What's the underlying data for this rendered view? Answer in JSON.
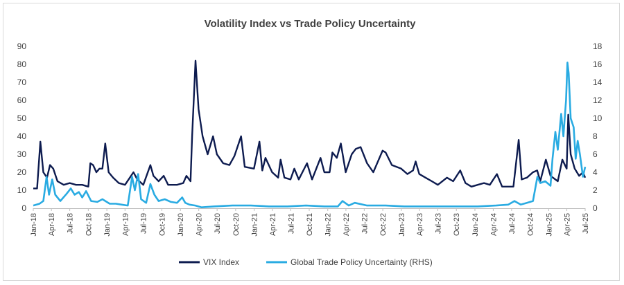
{
  "chart_data": {
    "type": "line",
    "title": "Volatility Index vs Trade Policy Uncertainty",
    "xlabel": "",
    "ylabel": "",
    "y_left": {
      "min": 0,
      "max": 90,
      "step": 10
    },
    "y_right": {
      "min": 0,
      "max": 18,
      "step": 2
    },
    "x_range": [
      "2018-01",
      "2025-07"
    ],
    "x_tick_labels": [
      "Jan-18",
      "Apr-18",
      "Jul-18",
      "Oct-18",
      "Jan-19",
      "Apr-19",
      "Jul-19",
      "Oct-19",
      "Jan-20",
      "Apr-20",
      "Jul-20",
      "Oct-20",
      "Jan-21",
      "Apr-21",
      "Jul-21",
      "Oct-21",
      "Jan-22",
      "Apr-22",
      "Jul-22",
      "Oct-22",
      "Jan-23",
      "Apr-23",
      "Jul-23",
      "Oct-23",
      "Jan-24",
      "Apr-24",
      "Jul-24",
      "Oct-24",
      "Jan-25",
      "Apr-25",
      "Jul-25"
    ],
    "legend": "bottom",
    "grid": "none",
    "series": [
      {
        "name": "VIX Index",
        "axis": "left",
        "color": "#0d1b4f",
        "points": [
          [
            "2018-01-01",
            11
          ],
          [
            "2018-01-20",
            11
          ],
          [
            "2018-02-05",
            37
          ],
          [
            "2018-02-20",
            20
          ],
          [
            "2018-03-10",
            17
          ],
          [
            "2018-03-25",
            24
          ],
          [
            "2018-04-10",
            22
          ],
          [
            "2018-05-01",
            15
          ],
          [
            "2018-06-01",
            13
          ],
          [
            "2018-07-01",
            14
          ],
          [
            "2018-08-01",
            13
          ],
          [
            "2018-09-01",
            13
          ],
          [
            "2018-10-01",
            12
          ],
          [
            "2018-10-11",
            25
          ],
          [
            "2018-10-25",
            24
          ],
          [
            "2018-11-10",
            20
          ],
          [
            "2018-11-25",
            22
          ],
          [
            "2018-12-10",
            22
          ],
          [
            "2018-12-24",
            36
          ],
          [
            "2019-01-10",
            20
          ],
          [
            "2019-02-01",
            17
          ],
          [
            "2019-03-01",
            14
          ],
          [
            "2019-04-01",
            13
          ],
          [
            "2019-05-13",
            20
          ],
          [
            "2019-06-01",
            16
          ],
          [
            "2019-07-01",
            13
          ],
          [
            "2019-08-05",
            24
          ],
          [
            "2019-08-20",
            18
          ],
          [
            "2019-09-15",
            15
          ],
          [
            "2019-10-10",
            18
          ],
          [
            "2019-11-01",
            13
          ],
          [
            "2019-12-15",
            13
          ],
          [
            "2020-01-15",
            14
          ],
          [
            "2020-01-31",
            18
          ],
          [
            "2020-02-20",
            15
          ],
          [
            "2020-02-28",
            40
          ],
          [
            "2020-03-16",
            82
          ],
          [
            "2020-03-31",
            55
          ],
          [
            "2020-04-20",
            40
          ],
          [
            "2020-05-15",
            30
          ],
          [
            "2020-06-11",
            40
          ],
          [
            "2020-06-30",
            30
          ],
          [
            "2020-07-31",
            25
          ],
          [
            "2020-08-31",
            24
          ],
          [
            "2020-09-25",
            29
          ],
          [
            "2020-10-28",
            40
          ],
          [
            "2020-11-15",
            23
          ],
          [
            "2020-12-31",
            22
          ],
          [
            "2021-01-27",
            37
          ],
          [
            "2021-02-10",
            21
          ],
          [
            "2021-02-26",
            28
          ],
          [
            "2021-03-31",
            20
          ],
          [
            "2021-04-30",
            17
          ],
          [
            "2021-05-12",
            27
          ],
          [
            "2021-05-31",
            17
          ],
          [
            "2021-06-30",
            16
          ],
          [
            "2021-07-19",
            22
          ],
          [
            "2021-08-10",
            16
          ],
          [
            "2021-09-20",
            25
          ],
          [
            "2021-10-15",
            16
          ],
          [
            "2021-11-26",
            28
          ],
          [
            "2021-12-15",
            20
          ],
          [
            "2022-01-10",
            20
          ],
          [
            "2022-01-24",
            31
          ],
          [
            "2022-02-15",
            28
          ],
          [
            "2022-03-07",
            36
          ],
          [
            "2022-03-31",
            20
          ],
          [
            "2022-04-30",
            30
          ],
          [
            "2022-05-20",
            33
          ],
          [
            "2022-06-13",
            34
          ],
          [
            "2022-07-15",
            25
          ],
          [
            "2022-08-15",
            20
          ],
          [
            "2022-09-30",
            32
          ],
          [
            "2022-10-15",
            31
          ],
          [
            "2022-11-15",
            24
          ],
          [
            "2022-12-31",
            22
          ],
          [
            "2023-01-31",
            19
          ],
          [
            "2023-02-28",
            21
          ],
          [
            "2023-03-13",
            26
          ],
          [
            "2023-03-31",
            19
          ],
          [
            "2023-05-01",
            17
          ],
          [
            "2023-06-01",
            15
          ],
          [
            "2023-07-01",
            13
          ],
          [
            "2023-08-15",
            17
          ],
          [
            "2023-09-15",
            15
          ],
          [
            "2023-10-20",
            21
          ],
          [
            "2023-11-15",
            14
          ],
          [
            "2023-12-15",
            12
          ],
          [
            "2024-01-15",
            13
          ],
          [
            "2024-02-15",
            14
          ],
          [
            "2024-03-15",
            13
          ],
          [
            "2024-04-19",
            19
          ],
          [
            "2024-05-15",
            12
          ],
          [
            "2024-07-10",
            12
          ],
          [
            "2024-08-05",
            38
          ],
          [
            "2024-08-20",
            16
          ],
          [
            "2024-09-15",
            17
          ],
          [
            "2024-10-15",
            20
          ],
          [
            "2024-11-05",
            21
          ],
          [
            "2024-11-20",
            15
          ],
          [
            "2024-12-18",
            27
          ],
          [
            "2025-01-10",
            18
          ],
          [
            "2025-02-15",
            15
          ],
          [
            "2025-03-10",
            27
          ],
          [
            "2025-03-31",
            22
          ],
          [
            "2025-04-08",
            52
          ],
          [
            "2025-04-20",
            30
          ],
          [
            "2025-05-10",
            22
          ],
          [
            "2025-06-01",
            18
          ],
          [
            "2025-06-20",
            20
          ],
          [
            "2025-07-01",
            17
          ]
        ]
      },
      {
        "name": "Global Trade Policy Uncertainty (RHS)",
        "axis": "right",
        "color": "#29abe2",
        "points": [
          [
            "2018-01-01",
            0.3
          ],
          [
            "2018-02-01",
            0.5
          ],
          [
            "2018-02-20",
            0.8
          ],
          [
            "2018-03-08",
            3.5
          ],
          [
            "2018-03-20",
            1.5
          ],
          [
            "2018-04-05",
            3.2
          ],
          [
            "2018-04-20",
            1.5
          ],
          [
            "2018-05-15",
            0.8
          ],
          [
            "2018-06-15",
            1.6
          ],
          [
            "2018-07-06",
            2.2
          ],
          [
            "2018-07-25",
            1.5
          ],
          [
            "2018-08-15",
            1.8
          ],
          [
            "2018-09-01",
            1.2
          ],
          [
            "2018-09-20",
            1.9
          ],
          [
            "2018-10-15",
            0.8
          ],
          [
            "2018-11-15",
            0.7
          ],
          [
            "2018-12-10",
            1.0
          ],
          [
            "2019-01-15",
            0.5
          ],
          [
            "2019-02-15",
            0.5
          ],
          [
            "2019-03-15",
            0.4
          ],
          [
            "2019-04-15",
            0.3
          ],
          [
            "2019-05-06",
            3.5
          ],
          [
            "2019-05-20",
            2.0
          ],
          [
            "2019-06-05",
            3.8
          ],
          [
            "2019-06-20",
            1.0
          ],
          [
            "2019-07-15",
            0.6
          ],
          [
            "2019-08-05",
            2.7
          ],
          [
            "2019-08-25",
            1.5
          ],
          [
            "2019-09-15",
            0.8
          ],
          [
            "2019-10-15",
            1.0
          ],
          [
            "2019-11-15",
            0.7
          ],
          [
            "2019-12-15",
            0.6
          ],
          [
            "2020-01-10",
            1.2
          ],
          [
            "2020-01-25",
            0.6
          ],
          [
            "2020-02-15",
            0.4
          ],
          [
            "2020-03-15",
            0.3
          ],
          [
            "2020-04-15",
            0.1
          ],
          [
            "2020-06-15",
            0.2
          ],
          [
            "2020-09-15",
            0.3
          ],
          [
            "2020-12-15",
            0.3
          ],
          [
            "2021-03-15",
            0.2
          ],
          [
            "2021-06-15",
            0.2
          ],
          [
            "2021-09-15",
            0.3
          ],
          [
            "2021-12-15",
            0.2
          ],
          [
            "2022-02-20",
            0.2
          ],
          [
            "2022-03-15",
            0.8
          ],
          [
            "2022-04-15",
            0.3
          ],
          [
            "2022-05-15",
            0.6
          ],
          [
            "2022-07-15",
            0.3
          ],
          [
            "2022-10-15",
            0.3
          ],
          [
            "2023-01-15",
            0.2
          ],
          [
            "2023-04-15",
            0.2
          ],
          [
            "2023-07-15",
            0.2
          ],
          [
            "2023-10-15",
            0.2
          ],
          [
            "2024-01-15",
            0.2
          ],
          [
            "2024-04-15",
            0.3
          ],
          [
            "2024-06-15",
            0.4
          ],
          [
            "2024-07-15",
            0.8
          ],
          [
            "2024-08-15",
            0.4
          ],
          [
            "2024-09-15",
            0.6
          ],
          [
            "2024-10-15",
            0.8
          ],
          [
            "2024-11-06",
            3.5
          ],
          [
            "2024-11-20",
            2.8
          ],
          [
            "2024-12-15",
            3.0
          ],
          [
            "2025-01-10",
            2.5
          ],
          [
            "2025-01-20",
            5.5
          ],
          [
            "2025-02-03",
            8.5
          ],
          [
            "2025-02-15",
            6.5
          ],
          [
            "2025-03-04",
            10.5
          ],
          [
            "2025-03-15",
            8.0
          ],
          [
            "2025-03-28",
            12.0
          ],
          [
            "2025-04-04",
            16.2
          ],
          [
            "2025-04-10",
            15.0
          ],
          [
            "2025-04-20",
            10.0
          ],
          [
            "2025-05-05",
            9.0
          ],
          [
            "2025-05-15",
            5.5
          ],
          [
            "2025-05-25",
            7.5
          ],
          [
            "2025-06-05",
            6.0
          ],
          [
            "2025-06-20",
            3.5
          ],
          [
            "2025-07-01",
            4.6
          ]
        ]
      }
    ]
  }
}
